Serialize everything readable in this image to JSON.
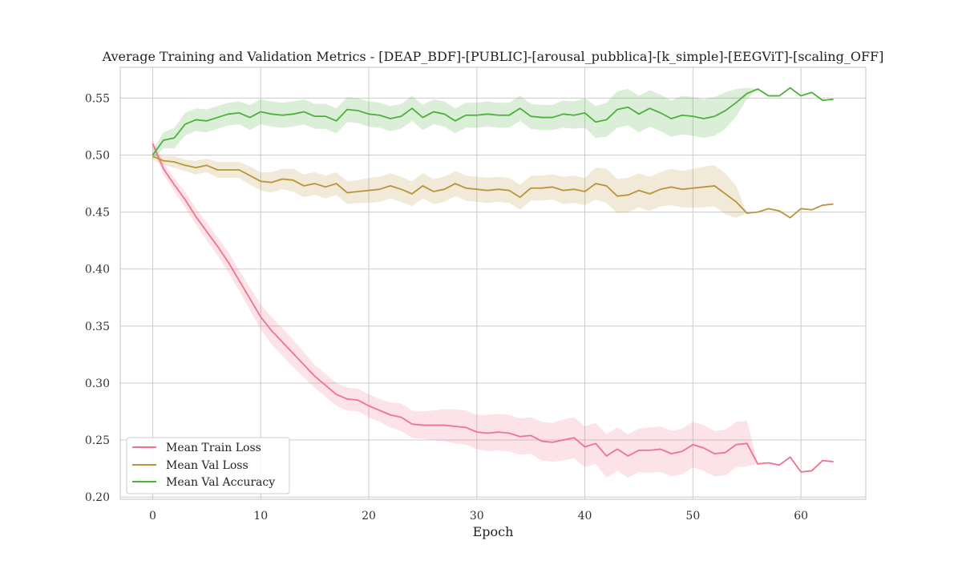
{
  "chart_data": {
    "type": "line",
    "title": "Average Training and Validation Metrics - [DEAP_BDF]-[PUBLIC]-[arousal_pubblica]-[k_simple]-[EEGViT]-[scaling_OFF]",
    "xlabel": "Epoch",
    "ylabel": "",
    "xlim": [
      -3,
      66
    ],
    "ylim": [
      0.198,
      0.577
    ],
    "xticks": [
      0,
      10,
      20,
      30,
      40,
      50,
      60
    ],
    "yticks": [
      0.2,
      0.25,
      0.3,
      0.35,
      0.4,
      0.45,
      0.5,
      0.55
    ],
    "ytick_labels": [
      "0.20",
      "0.25",
      "0.30",
      "0.35",
      "0.40",
      "0.45",
      "0.50",
      "0.55"
    ],
    "grid": true,
    "legend_position": "lower-left",
    "x": [
      0,
      1,
      2,
      3,
      4,
      5,
      6,
      7,
      8,
      9,
      10,
      11,
      12,
      13,
      14,
      15,
      16,
      17,
      18,
      19,
      20,
      21,
      22,
      23,
      24,
      25,
      26,
      27,
      28,
      29,
      30,
      31,
      32,
      33,
      34,
      35,
      36,
      37,
      38,
      39,
      40,
      41,
      42,
      43,
      44,
      45,
      46,
      47,
      48,
      49,
      50,
      51,
      52,
      53,
      54,
      55,
      56,
      57,
      58,
      59,
      60,
      61,
      62,
      63
    ],
    "series": [
      {
        "name": "Mean Train Loss",
        "color": "#f0728c",
        "values": [
          0.51,
          0.488,
          0.474,
          0.461,
          0.446,
          0.433,
          0.42,
          0.406,
          0.39,
          0.374,
          0.358,
          0.346,
          0.336,
          0.326,
          0.316,
          0.306,
          0.298,
          0.29,
          0.286,
          0.285,
          0.28,
          0.276,
          0.272,
          0.27,
          0.264,
          0.263,
          0.263,
          0.263,
          0.262,
          0.261,
          0.257,
          0.256,
          0.257,
          0.256,
          0.253,
          0.254,
          0.249,
          0.248,
          0.25,
          0.252,
          0.244,
          0.247,
          0.236,
          0.242,
          0.236,
          0.241,
          0.241,
          0.242,
          0.238,
          0.24,
          0.246,
          0.243,
          0.238,
          0.239,
          0.246,
          0.247,
          0.229,
          0.23,
          0.228,
          0.235,
          0.222,
          0.223,
          0.232,
          0.231
        ],
        "band_halfwidth": [
          0.004,
          0.005,
          0.006,
          0.007,
          0.007,
          0.008,
          0.008,
          0.009,
          0.009,
          0.01,
          0.011,
          0.012,
          0.012,
          0.012,
          0.011,
          0.01,
          0.01,
          0.01,
          0.01,
          0.01,
          0.01,
          0.01,
          0.011,
          0.012,
          0.012,
          0.012,
          0.013,
          0.014,
          0.015,
          0.015,
          0.015,
          0.016,
          0.016,
          0.016,
          0.016,
          0.016,
          0.017,
          0.017,
          0.018,
          0.018,
          0.018,
          0.018,
          0.019,
          0.019,
          0.019,
          0.019,
          0.02,
          0.02,
          0.02,
          0.02,
          0.02,
          0.02,
          0.02,
          0.02,
          0.02,
          0.02,
          0,
          0,
          0,
          0,
          0,
          0,
          0,
          0
        ]
      },
      {
        "name": "Mean Val Loss",
        "color": "#b9943a",
        "values": [
          0.499,
          0.495,
          0.494,
          0.491,
          0.489,
          0.491,
          0.487,
          0.487,
          0.487,
          0.482,
          0.477,
          0.476,
          0.479,
          0.478,
          0.473,
          0.475,
          0.472,
          0.475,
          0.467,
          0.468,
          0.469,
          0.47,
          0.473,
          0.47,
          0.466,
          0.473,
          0.468,
          0.47,
          0.475,
          0.471,
          0.47,
          0.469,
          0.47,
          0.469,
          0.463,
          0.471,
          0.471,
          0.472,
          0.469,
          0.47,
          0.468,
          0.475,
          0.473,
          0.464,
          0.465,
          0.469,
          0.466,
          0.47,
          0.472,
          0.47,
          0.471,
          0.472,
          0.473,
          0.466,
          0.459,
          0.449,
          0.45,
          0.453,
          0.451,
          0.445,
          0.453,
          0.452,
          0.456,
          0.457
        ],
        "band_halfwidth": [
          0.003,
          0.004,
          0.005,
          0.005,
          0.006,
          0.006,
          0.007,
          0.007,
          0.007,
          0.008,
          0.008,
          0.009,
          0.009,
          0.01,
          0.01,
          0.01,
          0.01,
          0.01,
          0.01,
          0.01,
          0.011,
          0.011,
          0.011,
          0.011,
          0.011,
          0.011,
          0.011,
          0.011,
          0.011,
          0.011,
          0.011,
          0.011,
          0.011,
          0.011,
          0.011,
          0.011,
          0.011,
          0.011,
          0.012,
          0.012,
          0.012,
          0.014,
          0.015,
          0.015,
          0.015,
          0.015,
          0.015,
          0.015,
          0.016,
          0.016,
          0.017,
          0.018,
          0.018,
          0.018,
          0.014,
          0,
          0,
          0,
          0,
          0,
          0,
          0,
          0,
          0
        ]
      },
      {
        "name": "Mean Val Accuracy",
        "color": "#4cb13a",
        "values": [
          0.5,
          0.513,
          0.515,
          0.527,
          0.531,
          0.53,
          0.533,
          0.536,
          0.537,
          0.533,
          0.538,
          0.536,
          0.535,
          0.536,
          0.538,
          0.534,
          0.534,
          0.53,
          0.54,
          0.539,
          0.536,
          0.535,
          0.532,
          0.534,
          0.541,
          0.533,
          0.538,
          0.536,
          0.53,
          0.535,
          0.535,
          0.536,
          0.535,
          0.535,
          0.541,
          0.534,
          0.533,
          0.533,
          0.536,
          0.535,
          0.537,
          0.529,
          0.531,
          0.54,
          0.542,
          0.536,
          0.541,
          0.537,
          0.532,
          0.535,
          0.534,
          0.532,
          0.534,
          0.539,
          0.546,
          0.554,
          0.558,
          0.552,
          0.552,
          0.559,
          0.552,
          0.555,
          0.548,
          0.549
        ],
        "band_halfwidth": [
          0.004,
          0.007,
          0.009,
          0.01,
          0.01,
          0.01,
          0.01,
          0.01,
          0.01,
          0.011,
          0.011,
          0.011,
          0.011,
          0.011,
          0.011,
          0.011,
          0.011,
          0.011,
          0.011,
          0.011,
          0.011,
          0.011,
          0.011,
          0.011,
          0.011,
          0.011,
          0.011,
          0.011,
          0.011,
          0.011,
          0.011,
          0.011,
          0.011,
          0.011,
          0.011,
          0.011,
          0.011,
          0.011,
          0.012,
          0.012,
          0.013,
          0.014,
          0.015,
          0.016,
          0.016,
          0.016,
          0.016,
          0.016,
          0.016,
          0.017,
          0.017,
          0.017,
          0.017,
          0.016,
          0.012,
          0.005,
          0,
          0,
          0,
          0,
          0,
          0,
          0,
          0
        ]
      }
    ]
  }
}
